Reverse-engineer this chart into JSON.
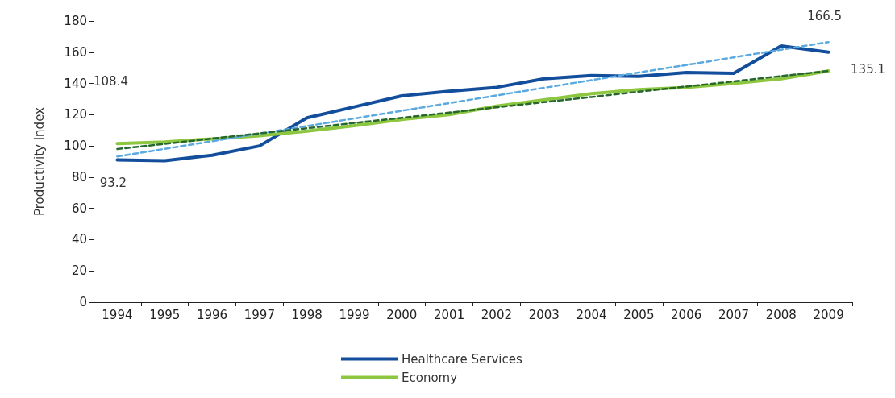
{
  "chart_data": {
    "type": "line",
    "ylabel": "Productivity Index",
    "categories": [
      "1994",
      "1995",
      "1996",
      "1997",
      "1998",
      "1999",
      "2000",
      "2001",
      "2002",
      "2003",
      "2004",
      "2005",
      "2006",
      "2007",
      "2008",
      "2009"
    ],
    "series": [
      {
        "name": "Healthcare Services",
        "color": "#124e9b",
        "values": [
          91,
          90.5,
          94,
          100,
          118,
          125,
          132,
          135,
          137.5,
          143,
          145,
          144.5,
          147,
          146.5,
          164,
          160
        ]
      },
      {
        "name": "Economy",
        "color": "#8dc63f",
        "values": [
          101.5,
          102.5,
          104.5,
          106.5,
          109.5,
          113,
          117,
          120,
          125.5,
          129.5,
          133.5,
          136,
          137.5,
          140,
          143,
          148
        ]
      },
      {
        "type": "line",
        "color": "#5aa9e0",
        "line_style": "dashed",
        "values": [
          93.2,
          98.1,
          103.0,
          107.9,
          112.7,
          117.6,
          122.5,
          127.4,
          132.3,
          137.2,
          142.1,
          147.0,
          151.8,
          156.7,
          161.6,
          166.5
        ],
        "value_labels": [
          "93.2",
          null,
          null,
          null,
          null,
          null,
          null,
          null,
          null,
          null,
          null,
          null,
          null,
          null,
          null,
          "166.5"
        ]
      },
      {
        "type": "line",
        "color": "#26672e",
        "line_style": "dashed",
        "values": [
          98,
          101.3,
          104.7,
          108,
          111.3,
          114.7,
          118,
          121.3,
          124.7,
          128,
          131.3,
          134.7,
          138,
          141.3,
          144.7,
          148
        ]
      }
    ],
    "annotations": [
      "108.4",
      "135.1"
    ],
    "ylim": [
      0,
      180
    ],
    "yticks": [
      0,
      20,
      40,
      60,
      80,
      100,
      120,
      140,
      160,
      180
    ],
    "grid": false,
    "legend": "bottom",
    "marker": "none",
    "line_style": "solid"
  }
}
